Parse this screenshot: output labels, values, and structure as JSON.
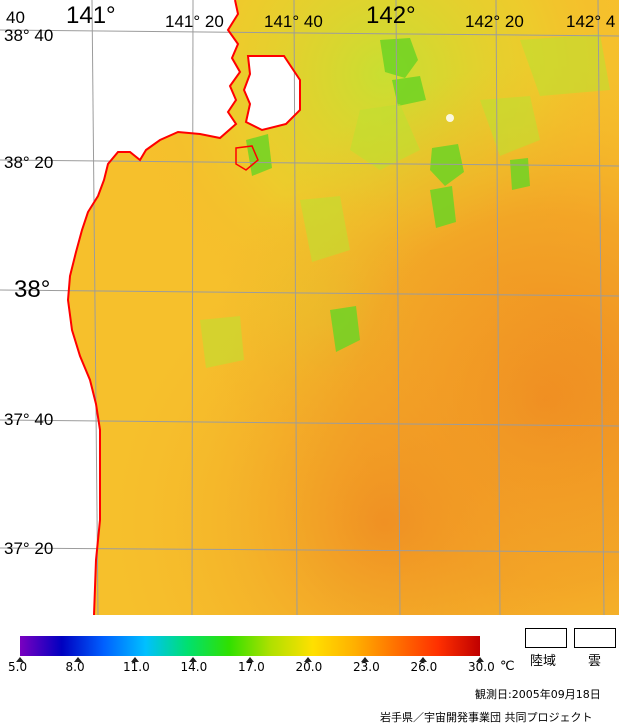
{
  "map": {
    "lon_labels": [
      {
        "text": "141°",
        "id": "lon-141"
      },
      {
        "text": "141° 20",
        "id": "lon-141-20"
      },
      {
        "text": "141° 40",
        "id": "lon-141-40"
      },
      {
        "text": "142°",
        "id": "lon-142"
      },
      {
        "text": "142° 20",
        "id": "lon-142-20"
      },
      {
        "text": "142° 4",
        "id": "lon-142-40"
      },
      {
        "text": "40",
        "id": "lon-140-40"
      }
    ],
    "lat_labels": [
      {
        "text": "38° 40",
        "id": "lat-38-40"
      },
      {
        "text": "38° 20",
        "id": "lat-38-20"
      },
      {
        "text": "38°",
        "id": "lat-38"
      },
      {
        "text": "37° 40",
        "id": "lat-37-40"
      },
      {
        "text": "37° 20",
        "id": "lat-37-20"
      }
    ],
    "colors": {
      "ocean_base": "#f5b52a",
      "warm": "#f08a20",
      "cool": "#b8e030",
      "green": "#5ad820",
      "coast": "#ff0000",
      "grid": "#a0a0a0",
      "land": "#ffffff"
    }
  },
  "legend": {
    "unit": "℃",
    "ticks": [
      "5.0",
      "8.0",
      "11.0",
      "14.0",
      "17.0",
      "20.0",
      "23.0",
      "26.0",
      "30.0"
    ],
    "land_label": "陸域",
    "cloud_label": "雲",
    "scale_colors": [
      "#7a00c0",
      "#0000c0",
      "#0060ff",
      "#00c0ff",
      "#00e070",
      "#30e000",
      "#b0e000",
      "#ffe000",
      "#ffb000",
      "#ff7000",
      "#ff3000",
      "#c00000"
    ]
  },
  "footer": {
    "observation_date": "観測日:2005年09月18日",
    "credit": "岩手県／宇宙開発事業団 共同プロジェクト"
  }
}
